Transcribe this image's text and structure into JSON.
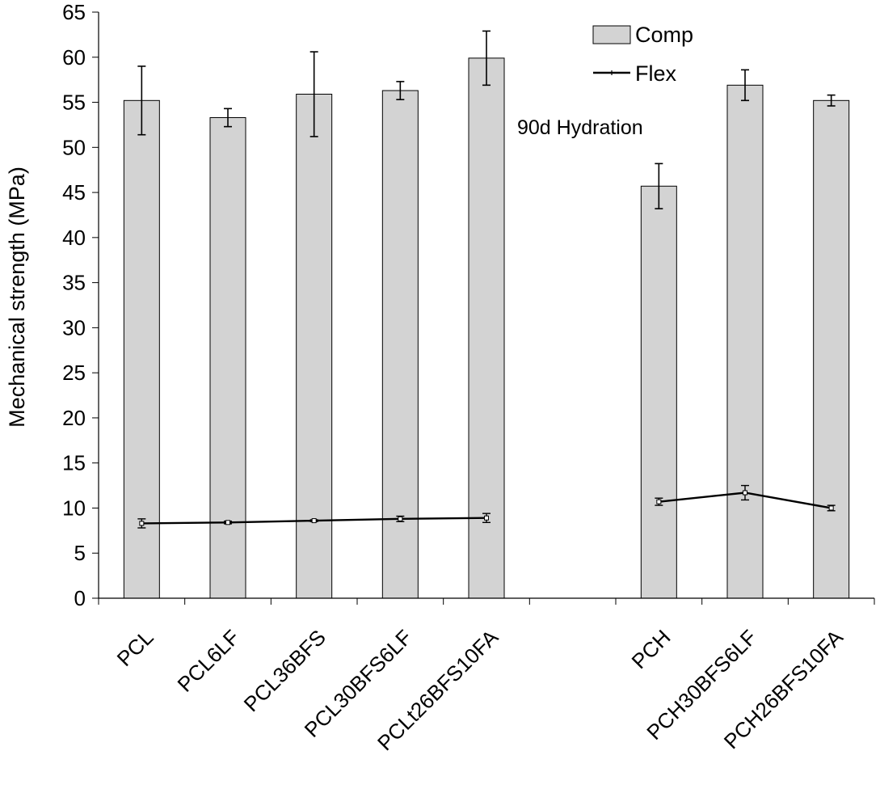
{
  "chart_data": {
    "type": "bar",
    "ylabel": "Mechanical strength (MPa)",
    "ylim": [
      0,
      65
    ],
    "yticks": [
      0,
      5,
      10,
      15,
      20,
      25,
      30,
      35,
      40,
      45,
      50,
      55,
      60,
      65
    ],
    "grid": false,
    "legend_position": "top-right",
    "annotation": "90d Hydration",
    "slots": [
      "PCL",
      "PCL6LF",
      "PCL36BFS",
      "PCL30BFS6LF",
      "PCLt26BFS10FA",
      "",
      "PCH",
      "PCH30BFS6LF",
      "PCH26BFS10FA"
    ],
    "categories": [
      "PCL",
      "PCL6LF",
      "PCL36BFS",
      "PCL30BFS6LF",
      "PCLt26BFS10FA",
      "PCH",
      "PCH30BFS6LF",
      "PCH26BFS10FA"
    ],
    "series": [
      {
        "name": "Comp",
        "kind": "bar",
        "color": "#d3d3d3",
        "values": [
          55.2,
          53.3,
          55.9,
          56.3,
          59.9,
          45.7,
          56.9,
          55.2
        ],
        "errors": [
          3.8,
          1.0,
          4.7,
          1.0,
          3.0,
          2.5,
          1.7,
          0.6
        ]
      },
      {
        "name": "Flex",
        "kind": "line",
        "color": "#000000",
        "values": [
          8.3,
          8.4,
          8.6,
          8.8,
          8.9,
          10.7,
          11.7,
          10.0
        ],
        "errors": [
          0.5,
          0.15,
          0.1,
          0.3,
          0.5,
          0.4,
          0.8,
          0.3
        ],
        "segments": [
          [
            0,
            4
          ],
          [
            5,
            7
          ]
        ]
      }
    ]
  }
}
